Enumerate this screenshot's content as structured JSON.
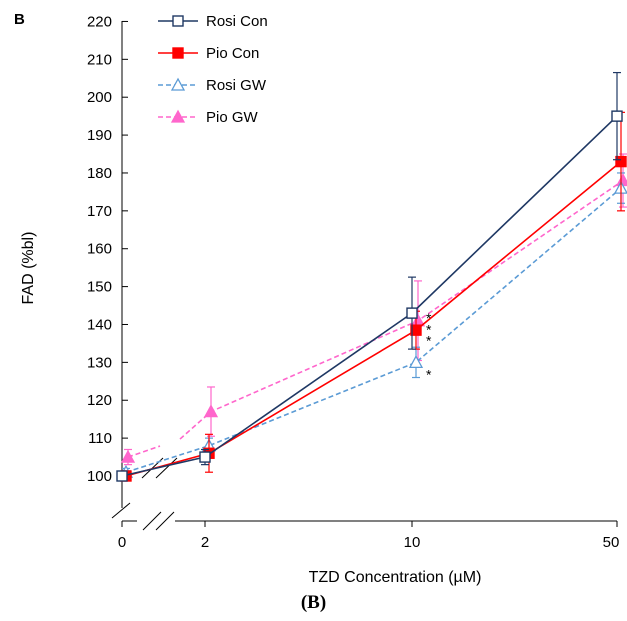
{
  "caption": "(B)",
  "chart_data": {
    "type": "line",
    "panel_label": "B",
    "xlabel": "TZD Concentration (µM)",
    "ylabel": "FAD (%bl)",
    "x_categories": [
      "0",
      "2",
      "10",
      "50"
    ],
    "x_scale": "categorical with axis breaks between 0 and 2",
    "ylim": [
      100,
      220
    ],
    "y_ticks": [
      100,
      110,
      120,
      130,
      140,
      150,
      160,
      170,
      180,
      190,
      200,
      210,
      220
    ],
    "grid": false,
    "legend_position": "top-left",
    "series": [
      {
        "name": "Rosi Con",
        "color": "#1f3864",
        "marker": "open-square",
        "line": "solid",
        "values": [
          100,
          105,
          143,
          195
        ],
        "error": [
          1,
          2,
          9.5,
          11.5
        ]
      },
      {
        "name": "Pio Con",
        "color": "#ff0000",
        "marker": "filled-square",
        "line": "solid",
        "values": [
          100,
          106,
          138.5,
          183
        ],
        "error": [
          1,
          5,
          5,
          13
        ]
      },
      {
        "name": "Rosi GW",
        "color": "#5b9bd5",
        "marker": "open-triangle",
        "line": "dashed",
        "values": [
          101,
          108,
          130,
          176
        ],
        "error": [
          1,
          2,
          4,
          4
        ]
      },
      {
        "name": "Pio GW",
        "color": "#ff66cc",
        "marker": "filled-triangle",
        "line": "dashed",
        "values": [
          105,
          117,
          141,
          178
        ],
        "error": [
          2,
          6.5,
          10.5,
          7
        ]
      }
    ],
    "annotations": [
      {
        "text": "*",
        "x": "10",
        "y": 142
      },
      {
        "text": "*",
        "x": "10",
        "y": 139
      },
      {
        "text": "*",
        "x": "10",
        "y": 136
      },
      {
        "text": "*",
        "x": "10",
        "y": 127
      }
    ]
  }
}
